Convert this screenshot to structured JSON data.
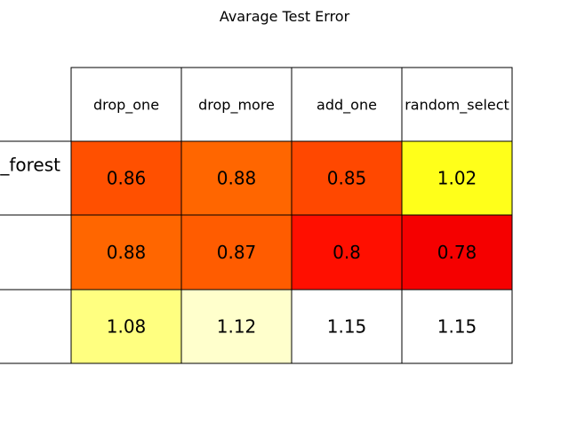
{
  "chart_data": {
    "type": "table",
    "title": "Avarage Test Error",
    "columns": [
      "drop_one",
      "drop_more",
      "add_one",
      "random_select"
    ],
    "rows": [
      {
        "label": "_forest",
        "values": [
          0.86,
          0.88,
          0.85,
          1.02
        ],
        "colors": [
          "#ff5000",
          "#ff6600",
          "#ff4800",
          "#ffff1a"
        ]
      },
      {
        "label": "",
        "values": [
          0.88,
          0.87,
          0.8,
          0.78
        ],
        "colors": [
          "#ff6600",
          "#ff5c00",
          "#ff0f00",
          "#f50000"
        ]
      },
      {
        "label": "",
        "values": [
          1.08,
          1.12,
          1.15,
          1.15
        ],
        "colors": [
          "#ffff80",
          "#ffffcc",
          "#ffffff",
          "#ffffff"
        ]
      }
    ],
    "colormap": "hot",
    "grid": true
  }
}
